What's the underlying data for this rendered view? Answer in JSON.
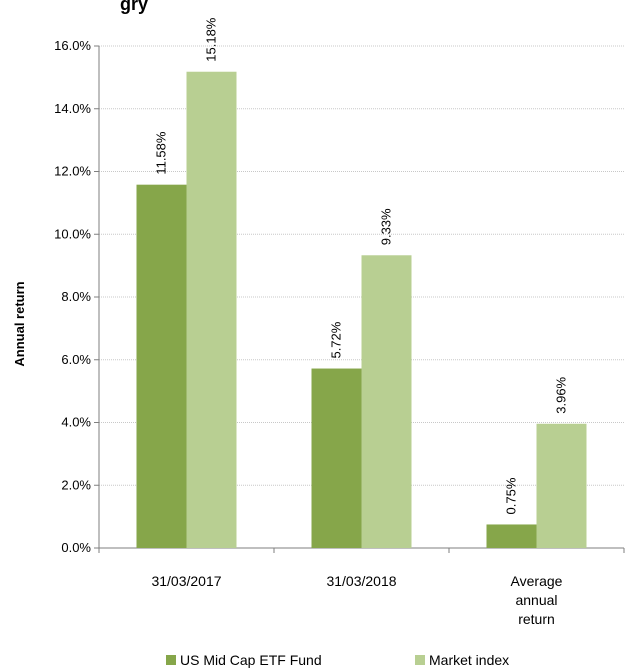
{
  "title_fragment": "gry",
  "chart_data": {
    "type": "bar",
    "categories": [
      [
        "31/03/2017"
      ],
      [
        "31/03/2018"
      ],
      [
        "Average",
        "annual",
        "return"
      ]
    ],
    "series": [
      {
        "name": "US Mid Cap ETF Fund",
        "color": "#86a64a",
        "values": [
          11.58,
          5.72,
          0.75
        ],
        "labels": [
          "11.58%",
          "5.72%",
          "0.75%"
        ]
      },
      {
        "name": "Market index",
        "color": "#b8cf92",
        "values": [
          15.18,
          9.33,
          3.96
        ],
        "labels": [
          "15.18%",
          "9.33%",
          "3.96%"
        ]
      }
    ],
    "ylabel": "Annual return",
    "ylim": [
      0,
      16
    ],
    "yticks": [
      "0.0%",
      "2.0%",
      "4.0%",
      "6.0%",
      "8.0%",
      "10.0%",
      "12.0%",
      "14.0%",
      "16.0%"
    ],
    "grid": true,
    "legend_position": "bottom"
  }
}
